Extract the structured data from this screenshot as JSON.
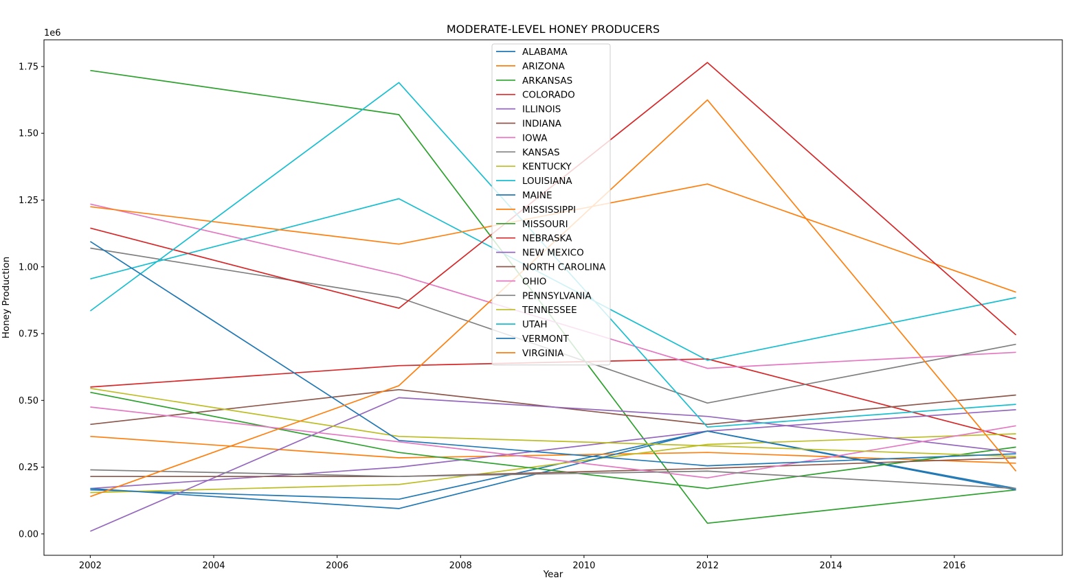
{
  "chart_data": {
    "type": "line",
    "title": "MODERATE-LEVEL HONEY PRODUCERS",
    "xlabel": "Year",
    "ylabel": "Honey Production",
    "y_offset_label": "1e6",
    "xlim": [
      2001.25,
      2017.75
    ],
    "ylim": [
      -0.08,
      1.85
    ],
    "x_ticks": [
      2002,
      2004,
      2006,
      2008,
      2010,
      2012,
      2014,
      2016
    ],
    "y_ticks": [
      0.0,
      0.25,
      0.5,
      0.75,
      1.0,
      1.25,
      1.5,
      1.75
    ],
    "y_tick_labels": [
      "0.00",
      "0.25",
      "0.50",
      "0.75",
      "1.00",
      "1.25",
      "1.50",
      "1.75"
    ],
    "x": [
      2002,
      2007,
      2012,
      2017
    ],
    "grid": false,
    "legend_position": "upper center",
    "series": [
      {
        "name": "ALABAMA",
        "color": "#1f77b4",
        "values": [
          0.165,
          0.13,
          0.385,
          0.17
        ]
      },
      {
        "name": "ARIZONA",
        "color": "#ff7f0e",
        "values": [
          0.365,
          0.285,
          0.305,
          0.265
        ]
      },
      {
        "name": "ARKANSAS",
        "color": "#2ca02c",
        "values": [
          1.735,
          1.57,
          0.04,
          0.165
        ]
      },
      {
        "name": "COLORADO",
        "color": "#d62728",
        "values": [
          0.55,
          0.63,
          0.655,
          0.355
        ]
      },
      {
        "name": "ILLINOIS",
        "color": "#9467bd",
        "values": [
          0.17,
          0.25,
          0.385,
          0.465
        ]
      },
      {
        "name": "INDIANA",
        "color": "#8c564b",
        "values": [
          0.41,
          0.54,
          0.41,
          0.52
        ]
      },
      {
        "name": "IOWA",
        "color": "#e377c2",
        "values": [
          1.235,
          0.97,
          0.62,
          0.68
        ]
      },
      {
        "name": "KANSAS",
        "color": "#7f7f7f",
        "values": [
          1.07,
          0.885,
          0.49,
          0.71
        ]
      },
      {
        "name": "KENTUCKY",
        "color": "#bcbd22",
        "values": [
          0.155,
          0.185,
          0.335,
          0.375
        ]
      },
      {
        "name": "LOUISIANA",
        "color": "#17becf",
        "values": [
          0.955,
          1.255,
          0.65,
          0.885
        ]
      },
      {
        "name": "MAINE",
        "color": "#1f77b4",
        "values": [
          0.17,
          0.095,
          0.385,
          0.165
        ]
      },
      {
        "name": "MISSISSIPPI",
        "color": "#ff7f0e",
        "values": [
          1.225,
          1.085,
          1.31,
          0.905
        ]
      },
      {
        "name": "MISSOURI",
        "color": "#2ca02c",
        "values": [
          0.53,
          0.305,
          0.17,
          0.325
        ]
      },
      {
        "name": "NEBRASKA",
        "color": "#d62728",
        "values": [
          1.145,
          0.845,
          1.765,
          0.745
        ]
      },
      {
        "name": "NEW MEXICO",
        "color": "#9467bd",
        "values": [
          0.01,
          0.51,
          0.44,
          0.305
        ]
      },
      {
        "name": "NORTH CAROLINA",
        "color": "#8c564b",
        "values": [
          0.215,
          0.215,
          0.245,
          0.285
        ]
      },
      {
        "name": "OHIO",
        "color": "#e377c2",
        "values": [
          0.475,
          0.345,
          0.21,
          0.405
        ]
      },
      {
        "name": "PENNSYLVANIA",
        "color": "#7f7f7f",
        "values": [
          0.24,
          0.215,
          0.235,
          0.17
        ]
      },
      {
        "name": "TENNESSEE",
        "color": "#bcbd22",
        "values": [
          0.545,
          0.365,
          0.33,
          0.29
        ]
      },
      {
        "name": "UTAH",
        "color": "#17becf",
        "values": [
          0.835,
          1.69,
          0.4,
          0.485
        ]
      },
      {
        "name": "VERMONT",
        "color": "#1f77b4",
        "values": [
          1.095,
          0.35,
          0.255,
          0.3
        ]
      },
      {
        "name": "VIRGINIA",
        "color": "#ff7f0e",
        "values": [
          0.14,
          0.555,
          1.625,
          0.235
        ]
      }
    ]
  }
}
